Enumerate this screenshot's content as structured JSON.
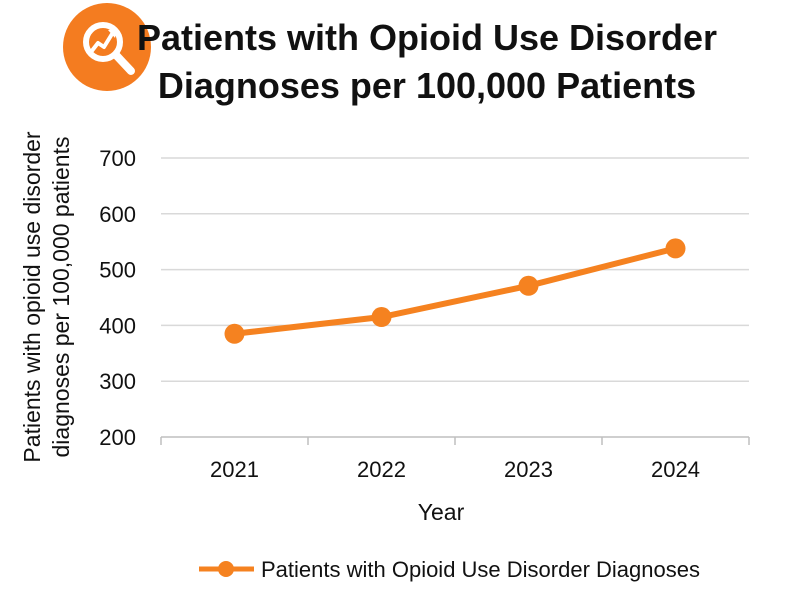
{
  "chart_data": {
    "type": "line",
    "title": [
      "Patients with Opioid Use Disorder",
      "Diagnoses per 100,000 Patients"
    ],
    "xlabel": "Year",
    "ylabel": [
      "Patients with opioid use disorder",
      "diagnoses per 100,000 patients"
    ],
    "categories": [
      "2021",
      "2022",
      "2023",
      "2024"
    ],
    "series": [
      {
        "name": "Patients with Opioid Use Disorder Diagnoses",
        "values": [
          385,
          415,
          471,
          538
        ]
      }
    ],
    "ylim": [
      200,
      700
    ],
    "yticks": [
      "200",
      "300",
      "400",
      "500",
      "600",
      "700"
    ],
    "grid": true,
    "legend": "bottom"
  },
  "icon": {
    "name": "search-chart-icon",
    "color": "#F47C20"
  },
  "colors": {
    "series": "#F58220",
    "grid": "#d9d9d9"
  }
}
